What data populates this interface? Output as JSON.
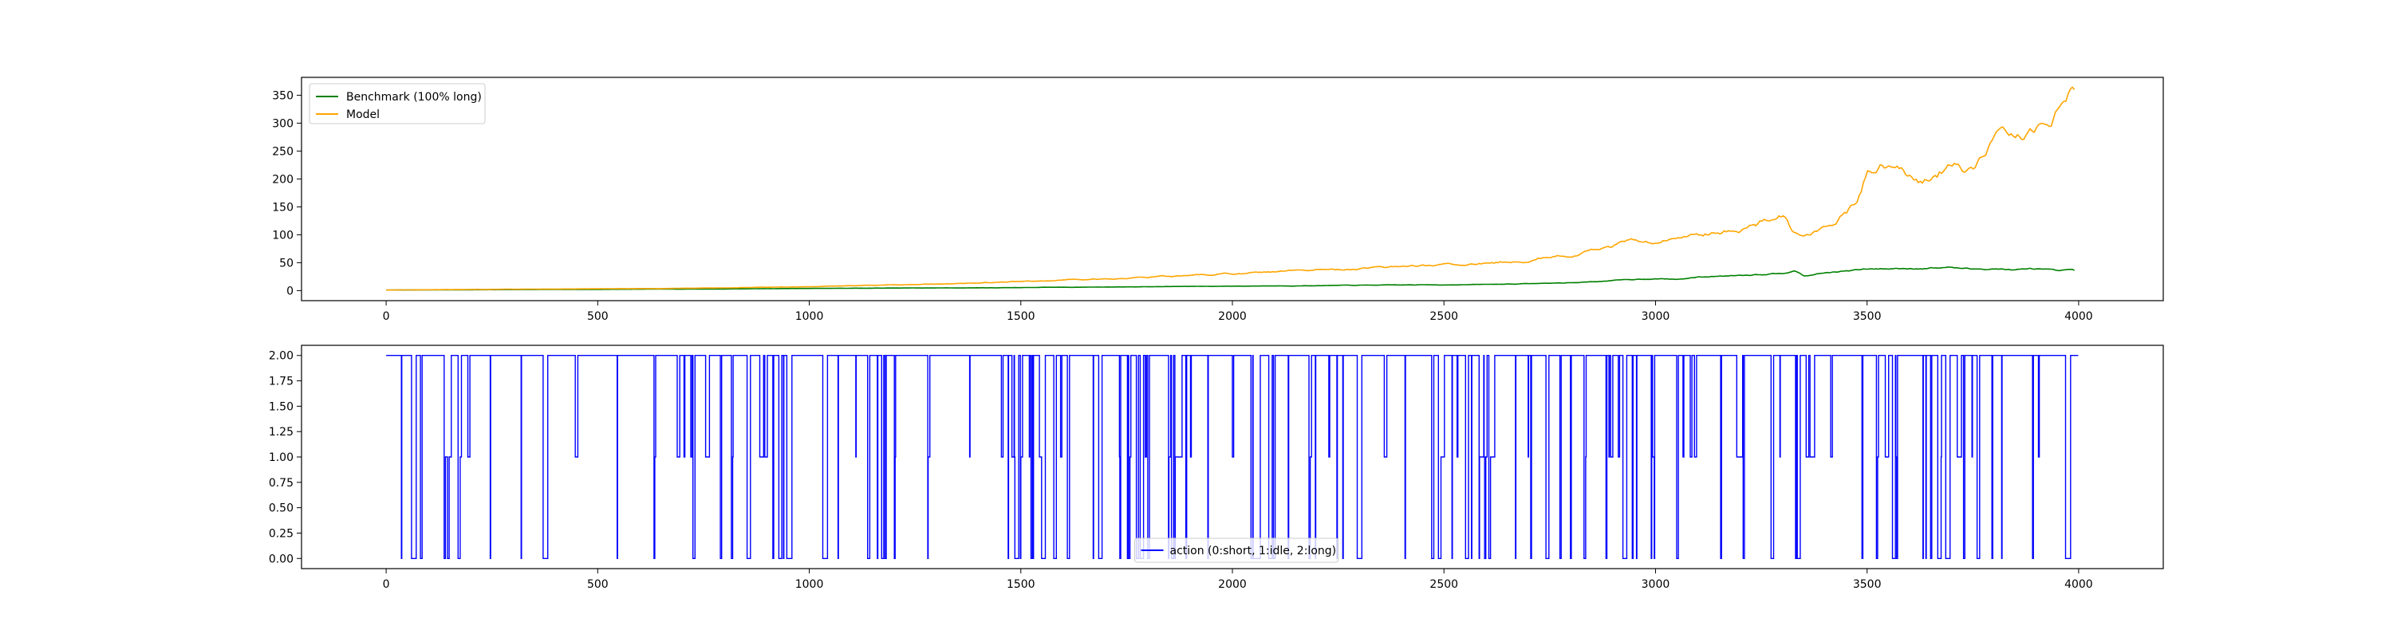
{
  "chart_data": [
    {
      "type": "line",
      "title": "",
      "xlabel": "",
      "ylabel": "",
      "xlim": [
        -200,
        4200
      ],
      "ylim": [
        -18,
        382
      ],
      "x_ticks": [
        0,
        500,
        1000,
        1500,
        2000,
        2500,
        3000,
        3500,
        4000
      ],
      "x_tick_labels": [
        "0",
        "500",
        "1000",
        "1500",
        "2000",
        "2500",
        "3000",
        "3500",
        "4000"
      ],
      "y_ticks": [
        0,
        50,
        100,
        150,
        200,
        250,
        300,
        350
      ],
      "y_tick_labels": [
        "0",
        "50",
        "100",
        "150",
        "200",
        "250",
        "300",
        "350"
      ],
      "grid": false,
      "legend": "upper left",
      "series": [
        {
          "name": "Benchmark (100% long)",
          "color": "#008000",
          "x": [
            0,
            200,
            400,
            600,
            800,
            1000,
            1200,
            1400,
            1600,
            1800,
            2000,
            2200,
            2400,
            2600,
            2800,
            2900,
            3000,
            3050,
            3100,
            3200,
            3300,
            3330,
            3350,
            3400,
            3500,
            3600,
            3700,
            3750,
            3800,
            3850,
            3900,
            3950,
            3990
          ],
          "y": [
            1,
            1.5,
            2,
            2.5,
            3,
            4,
            4.5,
            5,
            6,
            7,
            8,
            9,
            10,
            11,
            14,
            18,
            22,
            20,
            24,
            28,
            32,
            38,
            26,
            32,
            38,
            40,
            42,
            38,
            40,
            37,
            39,
            34,
            36
          ]
        },
        {
          "name": "Model",
          "color": "#ffa500",
          "x": [
            0,
            200,
            400,
            600,
            800,
            1000,
            1200,
            1400,
            1600,
            1800,
            2000,
            2200,
            2400,
            2600,
            2800,
            2900,
            2950,
            3000,
            3100,
            3200,
            3300,
            3320,
            3350,
            3400,
            3450,
            3480,
            3500,
            3550,
            3600,
            3650,
            3700,
            3750,
            3800,
            3850,
            3900,
            3950,
            3990
          ],
          "y": [
            1,
            2,
            3,
            3.5,
            5,
            7,
            10,
            14,
            19,
            24,
            30,
            36,
            42,
            50,
            62,
            78,
            90,
            88,
            100,
            112,
            135,
            110,
            95,
            115,
            140,
            170,
            215,
            230,
            205,
            200,
            230,
            210,
            260,
            280,
            290,
            320,
            360
          ]
        }
      ]
    },
    {
      "type": "line",
      "title": "",
      "xlabel": "",
      "ylabel": "",
      "xlim": [
        -200,
        4200
      ],
      "ylim": [
        -0.1,
        2.1
      ],
      "x_ticks": [
        0,
        500,
        1000,
        1500,
        2000,
        2500,
        3000,
        3500,
        4000
      ],
      "x_tick_labels": [
        "0",
        "500",
        "1000",
        "1500",
        "2000",
        "2500",
        "3000",
        "3500",
        "4000"
      ],
      "y_ticks": [
        0,
        0.25,
        0.5,
        0.75,
        1.0,
        1.25,
        1.5,
        1.75,
        2.0
      ],
      "y_tick_labels": [
        "0.00",
        "0.25",
        "0.50",
        "0.75",
        "1.00",
        "1.25",
        "1.50",
        "1.75",
        "2.00"
      ],
      "grid": false,
      "legend": "lower center",
      "series": [
        {
          "name": "action (0:short, 1:idle, 2:long)",
          "color": "#0000ff",
          "step": true,
          "values_note": "Discrete actions (0, 1, 2) sampled over 4000 steps; most steps long (2), dense switching to 0/1.",
          "sample_count": 4000
        }
      ]
    }
  ]
}
